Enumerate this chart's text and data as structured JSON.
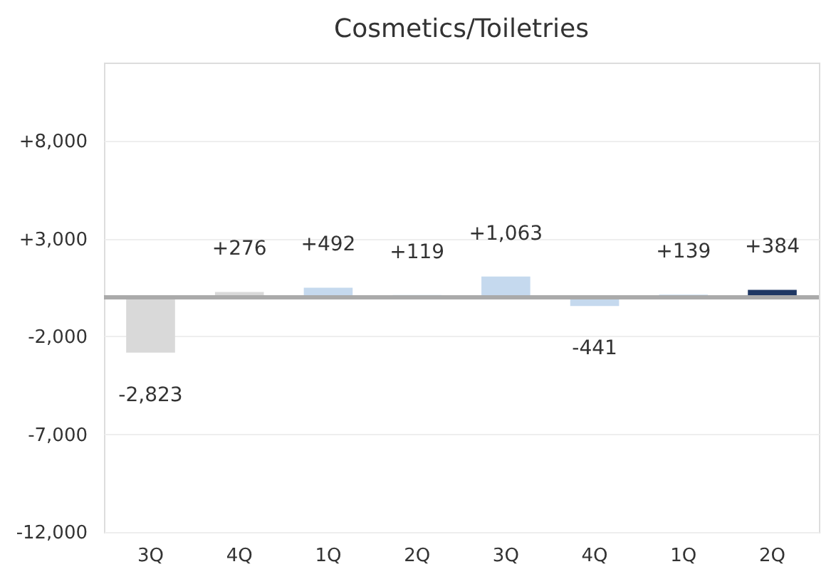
{
  "chart_data": {
    "type": "bar",
    "title": "Cosmetics/Toiletries",
    "categories": [
      "3Q",
      "4Q",
      "1Q",
      "2Q",
      "3Q",
      "4Q",
      "1Q",
      "2Q"
    ],
    "values": [
      -2823,
      276,
      492,
      119,
      1063,
      -441,
      139,
      384
    ],
    "colors": [
      "#d9d9d9",
      "#d9d9d9",
      "#c5d9ee",
      "#c5d9ee",
      "#c5d9ee",
      "#c5d9ee",
      "#c5d9ee",
      "#1f3864"
    ],
    "value_labels": [
      "-2,823",
      "+276",
      "+492",
      "+119",
      "+1,063",
      "-441",
      "+139",
      "+384"
    ],
    "ylim": [
      -12000,
      12000
    ],
    "yticks": [
      {
        "value": -12000,
        "label": "-12,000"
      },
      {
        "value": -7000,
        "label": "-7,000"
      },
      {
        "value": -2000,
        "label": "-2,000"
      },
      {
        "value": 3000,
        "label": "+3,000"
      },
      {
        "value": 8000,
        "label": "+8,000"
      }
    ],
    "ref_lines": [
      {
        "axis": "y",
        "value": 0,
        "color": "#aaaaaa"
      }
    ],
    "grid": "y"
  }
}
